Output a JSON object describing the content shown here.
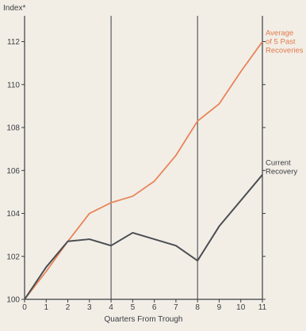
{
  "chart_data": {
    "type": "line",
    "title": "",
    "xlabel": "Quarters From Trough",
    "ylabel": "Index*",
    "x": [
      0,
      1,
      2,
      3,
      4,
      5,
      6,
      7,
      8,
      9,
      10,
      11
    ],
    "xlim": [
      0,
      11
    ],
    "ylim": [
      100,
      113.2
    ],
    "x_ticks": [
      0,
      1,
      2,
      3,
      4,
      5,
      6,
      7,
      8,
      9,
      10,
      11
    ],
    "y_ticks": [
      100,
      102,
      104,
      106,
      108,
      110,
      112
    ],
    "grid": false,
    "vertical_reference_lines": [
      4,
      8
    ],
    "series": [
      {
        "name": "Average of 5 Past Recoveries",
        "label_lines": [
          "Average",
          "of 5 Past",
          "Recoveries"
        ],
        "color": "#e8845a",
        "values": [
          100,
          101.3,
          102.7,
          104.0,
          104.5,
          104.8,
          105.5,
          106.7,
          108.3,
          109.1,
          110.6,
          112.0
        ]
      },
      {
        "name": "Current Recovery",
        "label_lines": [
          "Current",
          "Recovery"
        ],
        "color": "#4a4d52",
        "values": [
          100,
          101.5,
          102.7,
          102.8,
          102.5,
          103.1,
          102.8,
          102.5,
          101.8,
          103.4,
          104.6,
          105.8
        ]
      }
    ]
  }
}
